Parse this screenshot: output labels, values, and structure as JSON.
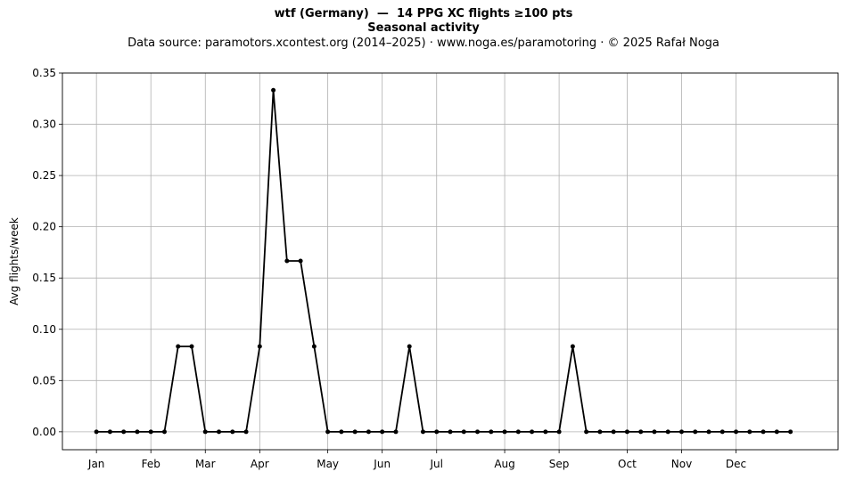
{
  "chart_data": {
    "type": "line",
    "title": "wtf (Germany)  —  14 PPG XC flights ≥100 pts",
    "subtitle": "Seasonal activity",
    "source_note": "Data source: paramotors.xcontest.org (2014–2025)  ·  www.noga.es/paramotoring  ·  © 2025 Rafał Noga",
    "xlabel": "",
    "ylabel": "Avg flights/week",
    "ylim": [
      -0.0175,
      0.35
    ],
    "xlim": [
      -2.5,
      54.5
    ],
    "yticks": [
      0.0,
      0.05,
      0.1,
      0.15,
      0.2,
      0.25,
      0.3,
      0.35
    ],
    "ytick_labels": [
      "0.00",
      "0.05",
      "0.10",
      "0.15",
      "0.20",
      "0.25",
      "0.30",
      "0.35"
    ],
    "xticks": [
      0,
      4,
      8,
      12,
      17,
      21,
      25,
      30,
      34,
      39,
      43,
      47
    ],
    "xtick_labels": [
      "Jan",
      "Feb",
      "Mar",
      "Apr",
      "May",
      "Jun",
      "Jul",
      "Aug",
      "Sep",
      "Oct",
      "Nov",
      "Dec"
    ],
    "grid": true,
    "line_color": "#000000",
    "grid_color": "#b0b0b0",
    "series": [
      {
        "x": [
          0,
          1,
          2,
          3,
          4,
          5,
          6,
          7,
          8,
          9,
          10,
          11,
          12,
          13,
          14,
          15,
          16,
          17,
          18,
          19,
          20,
          21,
          22,
          23,
          24,
          25,
          26,
          27,
          28,
          29,
          30,
          31,
          32,
          33,
          34,
          35,
          36,
          37,
          38,
          39,
          40,
          41,
          42,
          43,
          44,
          45,
          46,
          47,
          48,
          49,
          50,
          51
        ],
        "values": [
          0,
          0,
          0,
          0,
          0,
          0,
          0.0833,
          0.0833,
          0,
          0,
          0,
          0,
          0.0833,
          0.3333,
          0.1667,
          0.1667,
          0.0833,
          0,
          0,
          0,
          0,
          0,
          0,
          0.0833,
          0,
          0,
          0,
          0,
          0,
          0,
          0,
          0,
          0,
          0,
          0,
          0.0833,
          0,
          0,
          0,
          0,
          0,
          0,
          0,
          0,
          0,
          0,
          0,
          0,
          0,
          0,
          0,
          0
        ]
      }
    ]
  }
}
